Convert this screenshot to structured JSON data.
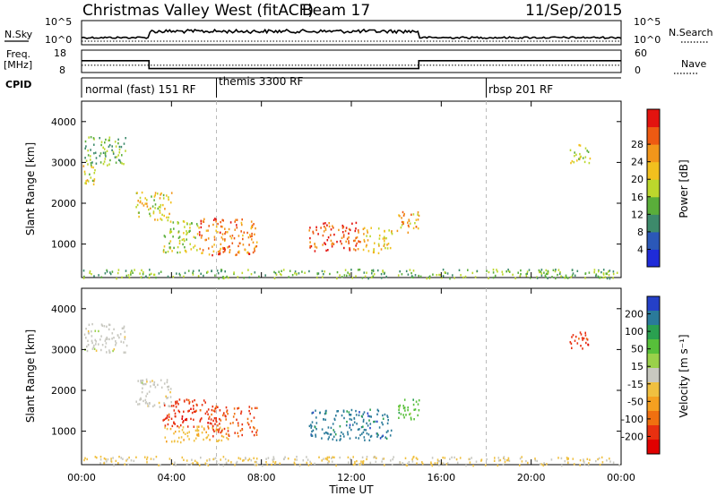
{
  "header": {
    "station": "Christmas Valley West (fitACF)",
    "beam": "Beam 17",
    "date": "11/Sep/2015"
  },
  "summary": {
    "nsky_label": "N.Sky",
    "nsearch_label": "N.Search",
    "freq_label_1": "Freq.",
    "freq_label_2": "[MHz]",
    "nave_label": "Nave",
    "cpid_label": "CPID",
    "left_top_tick": "10^5",
    "left_bottom_tick": "10^0",
    "right_top_tick": "10^5",
    "right_bottom_tick": "10^0",
    "freq_ticks": [
      "18",
      "8"
    ],
    "nave_ticks": [
      "60",
      "0"
    ],
    "cpid_segments": [
      {
        "label": "normal (fast) 151 RF",
        "start_hr": 0,
        "end_hr": 6
      },
      {
        "label": "themis 3300 RF",
        "start_hr": 6,
        "end_hr": 18
      },
      {
        "label": "rbsp 201 RF",
        "start_hr": 18,
        "end_hr": 24
      }
    ]
  },
  "axes": {
    "x_label": "Time UT",
    "x_ticks": [
      "00:00",
      "04:00",
      "08:00",
      "12:00",
      "16:00",
      "20:00",
      "00:00"
    ],
    "y_label": "Slant Range [km]",
    "y_ticks": [
      "1000",
      "2000",
      "3000",
      "4000"
    ]
  },
  "colorbars": {
    "power": {
      "label": "Power [dB]",
      "ticks": [
        "4",
        "8",
        "12",
        "16",
        "20",
        "24",
        "28"
      ],
      "colors": [
        "#1f2bd9",
        "#2b58b8",
        "#3d8a6b",
        "#5aae3a",
        "#bcd72c",
        "#f2c01e",
        "#f2961a",
        "#ee5a12",
        "#e3130f"
      ]
    },
    "velocity": {
      "label": "Velocity [m s⁻¹]",
      "ticks": [
        "200",
        "100",
        "50",
        "15",
        "-15",
        "-50",
        "-100",
        "-200"
      ],
      "colors": [
        "#2540c8",
        "#2a7a9a",
        "#2aa050",
        "#57c03a",
        "#9ad14a",
        "#c8c8c0",
        "#f0c040",
        "#f5a020",
        "#f07010",
        "#e83010",
        "#e00000"
      ]
    }
  },
  "chart_data": {
    "type": "heatmap",
    "x_range_hr": [
      0,
      24
    ],
    "y_range_km": [
      180,
      4500
    ],
    "nsky_level": {
      "0-3": "~10^1",
      "3-15": "~10^2",
      "15-24": "~10^1"
    },
    "freq_mhz": [
      {
        "start_hr": 0,
        "end_hr": 3,
        "value": 14
      },
      {
        "start_hr": 3,
        "end_hr": 15,
        "value": 10
      },
      {
        "start_hr": 15,
        "end_hr": 24,
        "value": 14
      }
    ],
    "nave": [
      {
        "start_hr": 0,
        "end_hr": 24,
        "value": 22
      }
    ],
    "power_regions": [
      {
        "t0": 0.1,
        "t1": 2.0,
        "r0": 2950,
        "r1": 3650,
        "power_db": 12
      },
      {
        "t0": 0.05,
        "t1": 0.6,
        "r0": 2400,
        "r1": 3000,
        "power_db": 18
      },
      {
        "t0": 2.4,
        "t1": 4.0,
        "r0": 1600,
        "r1": 2300,
        "power_db": 18
      },
      {
        "t0": 3.6,
        "t1": 5.2,
        "r0": 800,
        "r1": 1600,
        "power_db": 16
      },
      {
        "t0": 5.2,
        "t1": 7.8,
        "r0": 750,
        "r1": 1650,
        "power_db": 26
      },
      {
        "t0": 10.1,
        "t1": 12.4,
        "r0": 850,
        "r1": 1550,
        "power_db": 28
      },
      {
        "t0": 12.5,
        "t1": 13.8,
        "r0": 800,
        "r1": 1450,
        "power_db": 20
      },
      {
        "t0": 14.0,
        "t1": 15.0,
        "r0": 1300,
        "r1": 1850,
        "power_db": 22
      },
      {
        "t0": 21.7,
        "t1": 22.6,
        "r0": 3000,
        "r1": 3450,
        "power_db": 16
      },
      {
        "t0": 0.0,
        "t1": 24.0,
        "r0": 180,
        "r1": 400,
        "power_db": 12
      }
    ],
    "velocity_regions": [
      {
        "t0": 0.1,
        "t1": 2.0,
        "r0": 2950,
        "r1": 3650,
        "velocity": 0
      },
      {
        "t0": 2.4,
        "t1": 4.0,
        "r0": 1600,
        "r1": 2300,
        "velocity": 0
      },
      {
        "t0": 3.6,
        "t1": 5.6,
        "r0": 1100,
        "r1": 1800,
        "velocity": -200
      },
      {
        "t0": 3.6,
        "t1": 6.5,
        "r0": 750,
        "r1": 1150,
        "velocity": -60
      },
      {
        "t0": 5.6,
        "t1": 7.8,
        "r0": 900,
        "r1": 1650,
        "velocity": -180
      },
      {
        "t0": 10.1,
        "t1": 13.8,
        "r0": 800,
        "r1": 1550,
        "velocity": 200
      },
      {
        "t0": 14.0,
        "t1": 15.0,
        "r0": 1300,
        "r1": 1850,
        "velocity": 100
      },
      {
        "t0": 21.7,
        "t1": 22.6,
        "r0": 3000,
        "r1": 3450,
        "velocity": -200
      },
      {
        "t0": 0.0,
        "t1": 24.0,
        "r0": 180,
        "r1": 400,
        "velocity": -30
      }
    ]
  }
}
